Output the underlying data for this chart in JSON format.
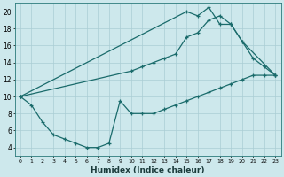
{
  "title": "",
  "xlabel": "Humidex (Indice chaleur)",
  "background_color": "#cde8ec",
  "grid_color": "#aacdd4",
  "line_color": "#1a6b6b",
  "xlim": [
    -0.5,
    23.5
  ],
  "ylim": [
    3.0,
    21.0
  ],
  "xticks": [
    0,
    1,
    2,
    3,
    4,
    5,
    6,
    7,
    8,
    9,
    10,
    11,
    12,
    13,
    14,
    15,
    16,
    17,
    18,
    19,
    20,
    21,
    22,
    23
  ],
  "yticks": [
    4,
    6,
    8,
    10,
    12,
    14,
    16,
    18,
    20
  ],
  "line1_x": [
    0,
    1,
    2,
    3,
    4,
    5,
    6,
    7,
    8,
    9,
    10,
    11,
    12,
    13,
    14,
    15,
    16,
    17,
    18,
    19,
    20,
    21,
    22,
    23
  ],
  "line1_y": [
    10,
    9,
    7,
    5.5,
    5,
    4.5,
    4,
    4,
    4.5,
    9.5,
    8,
    8,
    8,
    8.5,
    9,
    9.5,
    10,
    10.5,
    11,
    11.5,
    12,
    12.5,
    12.5,
    12.5
  ],
  "line2_x": [
    0,
    10,
    11,
    12,
    13,
    14,
    15,
    16,
    17,
    18,
    19,
    20,
    21,
    22,
    23
  ],
  "line2_y": [
    10,
    13,
    13.5,
    14,
    14.5,
    15,
    17,
    17.5,
    19,
    19.5,
    18.5,
    16.5,
    14.5,
    13.5,
    12.5
  ],
  "line3_x": [
    0,
    15,
    16,
    17,
    18,
    19,
    20,
    23
  ],
  "line3_y": [
    10,
    20,
    19.5,
    20.5,
    18.5,
    18.5,
    16.5,
    12.5
  ]
}
